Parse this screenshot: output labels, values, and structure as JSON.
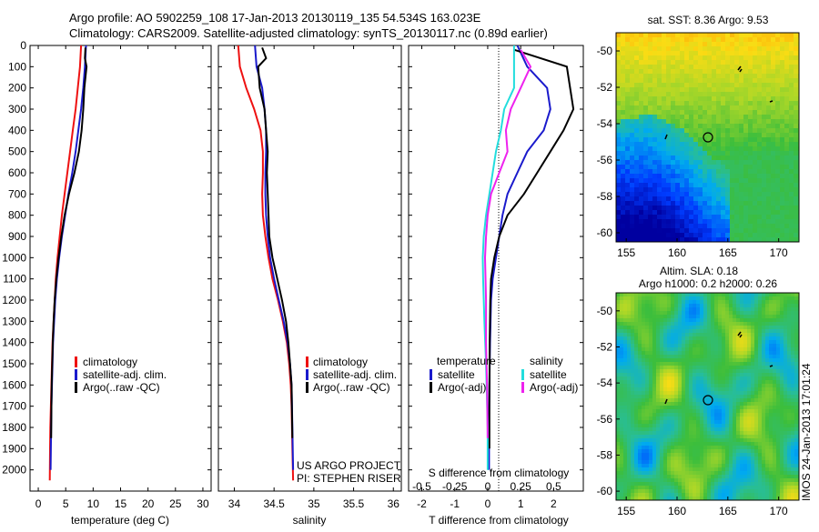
{
  "header": {
    "line1": "Argo profile: AO 5902259_108 17-Jan-2013 20130119_135 54.534S 163.023E",
    "line2": "Climatology: CARS2009. Satellite-adjusted climatology: synTS_20130117.nc (0.89d earlier)"
  },
  "colors": {
    "climatology": "#ee1111",
    "satellite": "#1a1acc",
    "argo": "#000000",
    "satellite_s": "#22dddd",
    "argo_s": "#ee22ee"
  },
  "chart_data": [
    {
      "type": "line",
      "id": "temperature",
      "xlabel": "temperature (deg C)",
      "ylabel": "",
      "xlim": [
        -1.5,
        31.5
      ],
      "ylim": [
        2100,
        0
      ],
      "xticks": [
        "0",
        "5",
        "10",
        "15",
        "20",
        "25",
        "30"
      ],
      "yticks": [
        "0",
        "100",
        "200",
        "300",
        "400",
        "500",
        "600",
        "700",
        "800",
        "900",
        "1000",
        "1100",
        "1200",
        "1300",
        "1400",
        "1500",
        "1600",
        "1700",
        "1800",
        "1900",
        "2000"
      ],
      "legend": [
        "climatology",
        "satellite-adj. clim.",
        "Argo(..raw -QC)"
      ],
      "series": [
        {
          "name": "climatology",
          "color": "#ee1111",
          "x": [
            7.8,
            7.6,
            7.2,
            6.8,
            6.3,
            5.8,
            5.3,
            4.8,
            4.3,
            3.9,
            3.5,
            3.2,
            3.0,
            2.8,
            2.6,
            2.5,
            2.4,
            2.3,
            2.2,
            2.15,
            2.1
          ],
          "y": [
            0,
            100,
            200,
            300,
            400,
            500,
            600,
            700,
            800,
            900,
            1000,
            1100,
            1200,
            1300,
            1400,
            1500,
            1600,
            1700,
            1800,
            1900,
            2050
          ]
        },
        {
          "name": "satellite-adj. clim.",
          "color": "#1a1acc",
          "x": [
            8.7,
            8.5,
            8.2,
            7.8,
            7.3,
            6.8,
            6.2,
            5.5,
            4.9,
            4.3,
            3.8,
            3.4,
            3.1,
            2.9,
            2.7,
            2.6,
            2.5,
            2.4,
            2.35,
            2.3,
            2.25
          ],
          "y": [
            0,
            100,
            200,
            300,
            400,
            500,
            600,
            700,
            800,
            900,
            1000,
            1100,
            1200,
            1300,
            1400,
            1500,
            1600,
            1700,
            1800,
            1900,
            2000
          ]
        },
        {
          "name": "Argo(..raw -QC)",
          "color": "#000000",
          "x": [
            8.6,
            8.5,
            8.8,
            8.4,
            8.2,
            7.9,
            7.4,
            6.6,
            5.6,
            4.8,
            4.2,
            3.7,
            3.3,
            3.0,
            2.8,
            2.65,
            2.55,
            2.45,
            2.4,
            2.35
          ],
          "y": [
            10,
            60,
            100,
            200,
            300,
            400,
            500,
            600,
            700,
            800,
            900,
            1000,
            1100,
            1200,
            1300,
            1400,
            1500,
            1600,
            1700,
            1850
          ]
        }
      ]
    },
    {
      "type": "line",
      "id": "salinity",
      "xlabel": "salinity",
      "xlim": [
        33.8,
        36.1
      ],
      "ylim": [
        2100,
        0
      ],
      "xticks": [
        "34",
        "34.5",
        "35",
        "35.5",
        "36"
      ],
      "legend": [
        "climatology",
        "satellite-adj. clim.",
        "Argo(..raw -QC)"
      ],
      "annotation": [
        "US ARGO PROJECT",
        "PI: STEPHEN RISER"
      ],
      "series": [
        {
          "name": "climatology",
          "color": "#ee1111",
          "x": [
            34.05,
            34.07,
            34.15,
            34.25,
            34.33,
            34.36,
            34.36,
            34.35,
            34.36,
            34.39,
            34.43,
            34.48,
            34.55,
            34.61,
            34.66,
            34.69,
            34.71,
            34.72,
            34.73,
            34.74
          ],
          "y": [
            0,
            100,
            200,
            300,
            400,
            500,
            600,
            700,
            800,
            900,
            1000,
            1100,
            1200,
            1300,
            1400,
            1500,
            1600,
            1700,
            1900,
            2050
          ]
        },
        {
          "name": "satellite-adj. clim.",
          "color": "#1a1acc",
          "x": [
            34.26,
            34.28,
            34.35,
            34.38,
            34.4,
            34.4,
            34.39,
            34.39,
            34.4,
            34.42,
            34.45,
            34.5,
            34.56,
            34.62,
            34.67,
            34.7,
            34.72,
            34.73,
            34.74
          ],
          "y": [
            0,
            100,
            200,
            300,
            400,
            500,
            600,
            700,
            800,
            900,
            1000,
            1100,
            1200,
            1300,
            1400,
            1500,
            1600,
            1800,
            2000
          ]
        },
        {
          "name": "Argo(..raw -QC)",
          "color": "#000000",
          "x": [
            34.35,
            34.4,
            34.3,
            34.32,
            34.38,
            34.4,
            34.42,
            34.41,
            34.42,
            34.43,
            34.44,
            34.48,
            34.54,
            34.6,
            34.65,
            34.68,
            34.7,
            34.72,
            34.73
          ],
          "y": [
            10,
            60,
            100,
            200,
            300,
            400,
            500,
            600,
            700,
            800,
            900,
            1000,
            1100,
            1200,
            1300,
            1400,
            1500,
            1600,
            1850
          ]
        }
      ]
    },
    {
      "type": "line",
      "id": "difference",
      "xlabel": "T difference from climatology",
      "xlabel_top": "S difference from climatology",
      "xlim": [
        -2.4,
        2.9
      ],
      "ylim": [
        2100,
        0
      ],
      "xticks": [
        "-2",
        "-1",
        "0",
        "1",
        "2"
      ],
      "xticks_s": [
        "-0.5",
        "-0.25",
        "0",
        "0.25",
        "0.5"
      ],
      "legend_left_title": "temperature",
      "legend_right_title": "salinity",
      "legend": [
        "satellite",
        "Argo(-adj)",
        "satellite",
        "Argo(-adj)"
      ],
      "series": [
        {
          "name": "satellite",
          "color": "#1a1acc",
          "x": [
            0.9,
            1.2,
            1.8,
            1.9,
            1.7,
            1.2,
            0.9,
            0.6,
            0.45,
            0.35,
            0.25,
            0.15,
            0.1,
            0.07,
            0.05,
            0.04,
            0.04
          ],
          "y": [
            0,
            100,
            200,
            300,
            400,
            500,
            600,
            700,
            800,
            900,
            1000,
            1100,
            1200,
            1400,
            1600,
            1800,
            2000
          ]
        },
        {
          "name": "Argo(-adj)",
          "color": "#000000",
          "x": [
            0.8,
            2.4,
            2.5,
            2.6,
            2.3,
            1.9,
            1.5,
            1.1,
            0.6,
            0.35,
            0.2,
            0.1,
            0.08,
            0.06,
            0.05,
            0.05
          ],
          "y": [
            20,
            100,
            200,
            300,
            400,
            500,
            600,
            700,
            800,
            900,
            1000,
            1100,
            1200,
            1400,
            1700,
            1900
          ]
        },
        {
          "name": "satellite",
          "color": "#22dddd",
          "x": [
            0.8,
            0.8,
            0.8,
            0.5,
            0.4,
            0.25,
            0.15,
            0.05,
            -0.05,
            -0.12,
            -0.15,
            -0.14,
            -0.1,
            -0.05,
            0.0,
            0.0
          ],
          "y": [
            0,
            100,
            200,
            300,
            400,
            500,
            600,
            700,
            800,
            900,
            1000,
            1100,
            1300,
            1500,
            1800,
            2000
          ]
        },
        {
          "name": "Argo(-adj)",
          "color": "#ee22ee",
          "x": [
            1.0,
            1.3,
            1.0,
            0.7,
            0.55,
            0.6,
            0.35,
            0.1,
            0.0,
            -0.05,
            -0.08,
            -0.05,
            -0.05,
            -0.02,
            0.0
          ],
          "y": [
            20,
            100,
            200,
            300,
            400,
            500,
            600,
            700,
            800,
            900,
            1000,
            1200,
            1400,
            1600,
            1850
          ]
        }
      ]
    },
    {
      "type": "heatmap",
      "id": "sst-map",
      "title": "sat. SST: 8.36 Argo: 9.53",
      "xticks": [
        "155",
        "160",
        "165",
        "170"
      ],
      "yticks": [
        "-50",
        "-52",
        "-54",
        "-56",
        "-58",
        "-60"
      ],
      "xlim": [
        154,
        172
      ],
      "ylim": [
        -60.5,
        -49
      ]
    },
    {
      "type": "heatmap",
      "id": "sla-map",
      "title": "Altim. SLA: 0.18",
      "subtitle": "Argo h1000: 0.2 h2000: 0.26",
      "xticks": [
        "155",
        "160",
        "165",
        "170"
      ],
      "yticks": [
        "-50",
        "-52",
        "-54",
        "-56",
        "-58",
        "-60"
      ],
      "xlim": [
        154,
        172
      ],
      "ylim": [
        -60.5,
        -49
      ]
    }
  ],
  "footer": {
    "stamp": "IMOS 24-Jan-2013 17:01:24"
  }
}
